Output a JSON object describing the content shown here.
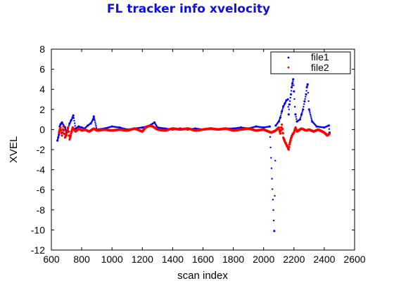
{
  "chart_data": {
    "type": "scatter",
    "title": "FL tracker info xvelocity",
    "xlabel": "scan index",
    "ylabel": "XVEL",
    "xlim": [
      600,
      2600
    ],
    "ylim": [
      -12,
      8
    ],
    "xticks": [
      600,
      800,
      1000,
      1200,
      1400,
      1600,
      1800,
      2000,
      2200,
      2400,
      2600
    ],
    "yticks": [
      -12,
      -10,
      -8,
      -6,
      -4,
      -2,
      0,
      2,
      4,
      6,
      8
    ],
    "grid": false,
    "legend": "top-right",
    "series": [
      {
        "name": "file1",
        "color": "#0000ff",
        "points": [
          [
            640,
            -1.1
          ],
          [
            645,
            -0.8
          ],
          [
            650,
            -0.5
          ],
          [
            655,
            0.3
          ],
          [
            660,
            0.5
          ],
          [
            665,
            0.6
          ],
          [
            670,
            0.7
          ],
          [
            690,
            0.2
          ],
          [
            700,
            -0.3
          ],
          [
            710,
            0.1
          ],
          [
            720,
            0.6
          ],
          [
            730,
            0.9
          ],
          [
            740,
            1.2
          ],
          [
            745,
            1.4
          ],
          [
            760,
            0.1
          ],
          [
            780,
            0.3
          ],
          [
            800,
            0.2
          ],
          [
            820,
            0.1
          ],
          [
            840,
            0.4
          ],
          [
            860,
            0.6
          ],
          [
            875,
            1.0
          ],
          [
            880,
            1.3
          ],
          [
            900,
            0.0
          ],
          [
            950,
            0.1
          ],
          [
            1000,
            0.3
          ],
          [
            1050,
            0.2
          ],
          [
            1100,
            0.0
          ],
          [
            1150,
            0.1
          ],
          [
            1200,
            0.2
          ],
          [
            1230,
            0.3
          ],
          [
            1260,
            0.5
          ],
          [
            1280,
            0.7
          ],
          [
            1300,
            0.2
          ],
          [
            1350,
            0.1
          ],
          [
            1400,
            0.0
          ],
          [
            1450,
            0.1
          ],
          [
            1500,
            0.0
          ],
          [
            1550,
            0.1
          ],
          [
            1600,
            0.0
          ],
          [
            1650,
            0.1
          ],
          [
            1700,
            0.0
          ],
          [
            1750,
            0.1
          ],
          [
            1800,
            0.1
          ],
          [
            1850,
            0.2
          ],
          [
            1900,
            0.1
          ],
          [
            1950,
            0.3
          ],
          [
            2000,
            0.2
          ],
          [
            2040,
            0.3
          ],
          [
            2070,
            -10.1
          ],
          [
            2080,
            0.4
          ],
          [
            2100,
            0.8
          ],
          [
            2110,
            1.2
          ],
          [
            2120,
            1.8
          ],
          [
            2130,
            2.3
          ],
          [
            2140,
            2.6
          ],
          [
            2150,
            2.9
          ],
          [
            2160,
            3.0
          ],
          [
            2165,
            1.5
          ],
          [
            2170,
            2.5
          ],
          [
            2180,
            3.5
          ],
          [
            2185,
            4.2
          ],
          [
            2190,
            4.6
          ],
          [
            2195,
            5.0
          ],
          [
            2200,
            3.8
          ],
          [
            2210,
            1.5
          ],
          [
            2220,
            0.8
          ],
          [
            2240,
            1.0
          ],
          [
            2250,
            1.5
          ],
          [
            2260,
            2.0
          ],
          [
            2270,
            2.8
          ],
          [
            2280,
            3.5
          ],
          [
            2285,
            4.2
          ],
          [
            2290,
            4.5
          ],
          [
            2300,
            2.0
          ],
          [
            2320,
            0.8
          ],
          [
            2350,
            0.3
          ],
          [
            2400,
            0.2
          ],
          [
            2430,
            0.4
          ],
          [
            2435,
            -0.3
          ]
        ]
      },
      {
        "name": "file2",
        "color": "#ff0000",
        "points": [
          [
            650,
            -0.3
          ],
          [
            660,
            0.2
          ],
          [
            670,
            -0.6
          ],
          [
            680,
            0.3
          ],
          [
            690,
            -0.8
          ],
          [
            700,
            -0.5
          ],
          [
            710,
            0.2
          ],
          [
            720,
            -1.0
          ],
          [
            730,
            -0.4
          ],
          [
            740,
            0.2
          ],
          [
            760,
            -0.2
          ],
          [
            780,
            0.1
          ],
          [
            800,
            -0.1
          ],
          [
            820,
            0.0
          ],
          [
            850,
            -0.2
          ],
          [
            880,
            0.1
          ],
          [
            900,
            -0.1
          ],
          [
            950,
            0.0
          ],
          [
            1000,
            -0.1
          ],
          [
            1050,
            0.0
          ],
          [
            1100,
            -0.1
          ],
          [
            1150,
            0.1
          ],
          [
            1200,
            -0.2
          ],
          [
            1220,
            0.2
          ],
          [
            1250,
            0.4
          ],
          [
            1270,
            0.3
          ],
          [
            1300,
            0.0
          ],
          [
            1350,
            -0.1
          ],
          [
            1400,
            0.1
          ],
          [
            1450,
            0.0
          ],
          [
            1500,
            0.1
          ],
          [
            1550,
            -0.1
          ],
          [
            1600,
            0.0
          ],
          [
            1650,
            0.1
          ],
          [
            1700,
            0.0
          ],
          [
            1750,
            0.1
          ],
          [
            1800,
            -0.1
          ],
          [
            1850,
            0.0
          ],
          [
            1900,
            0.1
          ],
          [
            1950,
            -0.1
          ],
          [
            2000,
            0.0
          ],
          [
            2050,
            -0.3
          ],
          [
            2080,
            -0.1
          ],
          [
            2100,
            0.2
          ],
          [
            2110,
            -0.4
          ],
          [
            2120,
            0.5
          ],
          [
            2130,
            -0.8
          ],
          [
            2140,
            -1.2
          ],
          [
            2150,
            -1.5
          ],
          [
            2160,
            -1.8
          ],
          [
            2165,
            -2.0
          ],
          [
            2170,
            -1.5
          ],
          [
            2180,
            -0.9
          ],
          [
            2190,
            -0.5
          ],
          [
            2200,
            -0.3
          ],
          [
            2210,
            0.2
          ],
          [
            2220,
            -0.2
          ],
          [
            2250,
            0.1
          ],
          [
            2280,
            -0.1
          ],
          [
            2300,
            0.0
          ],
          [
            2330,
            -0.2
          ],
          [
            2360,
            0.0
          ],
          [
            2400,
            -0.3
          ],
          [
            2420,
            -0.6
          ],
          [
            2435,
            -0.4
          ]
        ]
      }
    ]
  }
}
